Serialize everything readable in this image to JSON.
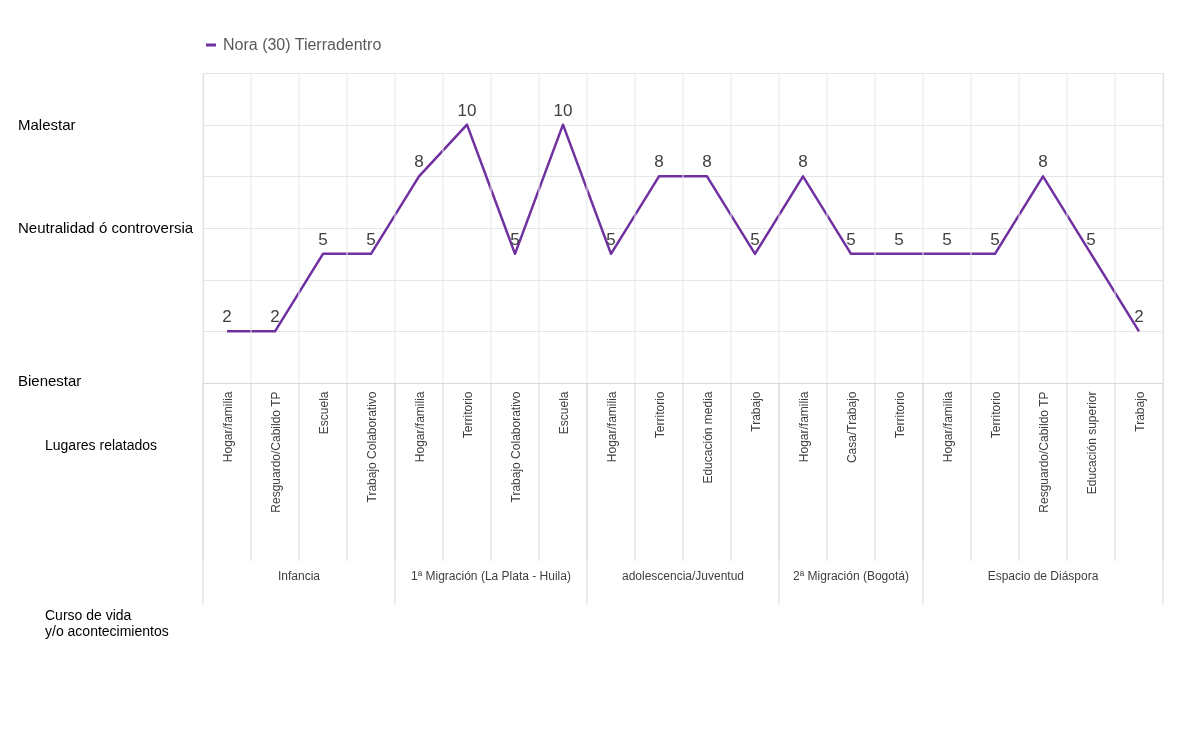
{
  "chart_data": {
    "type": "line",
    "categories": [
      "Hogar/familia",
      "Resguardo/Cabildo TP",
      "Escuela",
      "Trabajo Colaborativo",
      "Hogar/familia",
      "Territorio",
      "Trabajo Colaborativo",
      "Escuela",
      "Hogar/familia",
      "Territorio",
      "Educación media",
      "Trabajo",
      "Hogar/familia",
      "Casa/Trabajo",
      "Territorio",
      "Hogar/familia",
      "Territorio",
      "Resguardo/Cabildo TP",
      "Educación superior",
      "Trabajo"
    ],
    "series": [
      {
        "name": "Nora (30) Tierradentro",
        "color": "#7030a0",
        "values": [
          2,
          2,
          5,
          5,
          8,
          10,
          5,
          10,
          5,
          8,
          8,
          5,
          8,
          5,
          5,
          5,
          5,
          8,
          5,
          2
        ]
      }
    ],
    "xlabel": "Lugares relatados",
    "annotations": [
      "Curso de vida  y/o acontecimientos",
      "Infancia",
      "1ª Migración (La Plata - Huila)",
      "adolescencia/Juventud",
      "2ª Migración (Bogotá)",
      "Espacio de Diáspora",
      "Malestar",
      "Neutralidad ó controversia",
      "Bienestar"
    ],
    "ylim": [
      0,
      12
    ],
    "yticks": [
      {
        "value": 0,
        "label": null
      },
      {
        "value": 2,
        "label": null
      },
      {
        "value": 4,
        "label": null
      },
      {
        "value": 6,
        "label": null
      },
      {
        "value": 8,
        "label": null
      },
      {
        "value": 10,
        "label": null
      },
      {
        "value": 12,
        "label": null
      }
    ],
    "data_labels": true,
    "grid": true,
    "legend": "top",
    "marker": "none",
    "line_style": "solid"
  }
}
